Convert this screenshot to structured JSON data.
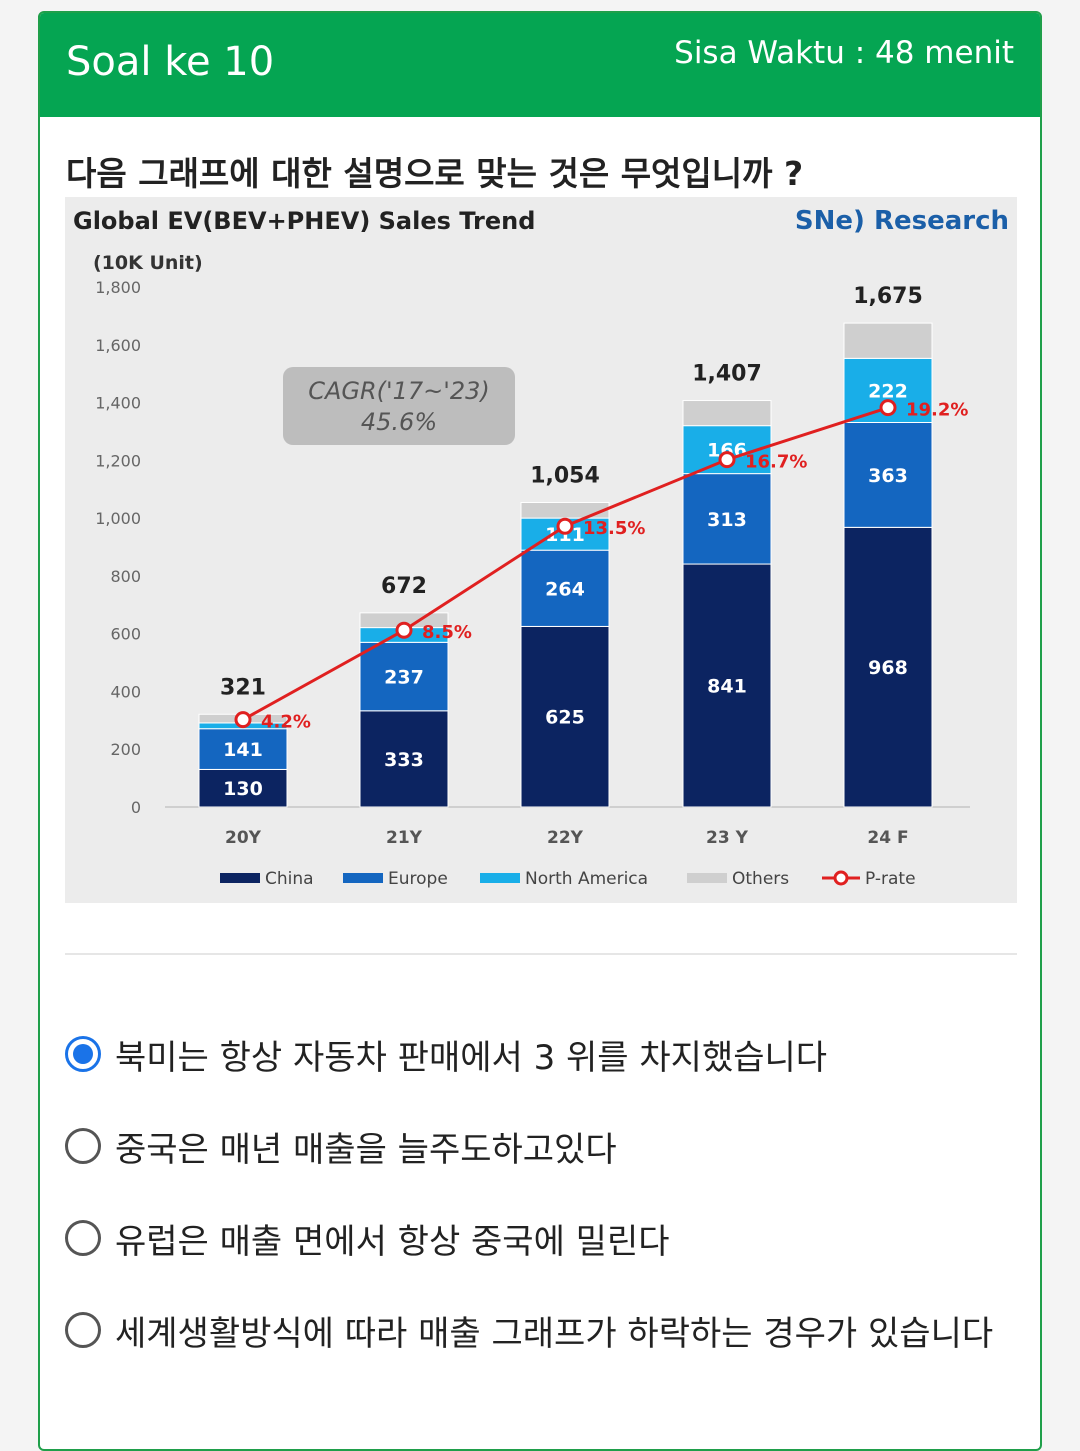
{
  "header": {
    "title": "Soal ke 10",
    "timer": "Sisa Waktu : 48 menit",
    "bg_color": "#05a552"
  },
  "question": "다음 그래프에 대한 설명으로 맞는 것은 무엇입니까 ?",
  "chart_data": {
    "type": "bar",
    "stacked": true,
    "title": "Global EV(BEV+PHEV)  Sales Trend",
    "brand": "SNe) Research",
    "unit_label": "(10K Unit)",
    "categories": [
      "20Y",
      "21Y",
      "22Y",
      "23 Y",
      "24 F"
    ],
    "ylim": [
      0,
      1800
    ],
    "yticks": [
      "1,800",
      "1,600",
      "1,400",
      "1,200",
      "1,000",
      "800",
      "600",
      "400",
      "200",
      "0"
    ],
    "ytick_values": [
      1800,
      1600,
      1400,
      1200,
      1000,
      800,
      600,
      400,
      200,
      0
    ],
    "totals": [
      "321",
      "672",
      "1,054",
      "1,407",
      "1,675"
    ],
    "total_values": [
      321,
      672,
      1054,
      1407,
      1675
    ],
    "series": [
      {
        "name": "China",
        "color": "#0c2461",
        "values": [
          130,
          333,
          625,
          841,
          968
        ],
        "labels": [
          "130",
          "333",
          "625",
          "841",
          "968"
        ]
      },
      {
        "name": "Europe",
        "color": "#1466c0",
        "values": [
          141,
          237,
          264,
          313,
          363
        ],
        "labels": [
          "141",
          "237",
          "264",
          "313",
          "363"
        ]
      },
      {
        "name": "North America",
        "color": "#19aee8",
        "values": [
          20,
          51,
          111,
          166,
          222
        ],
        "labels": [
          "",
          "",
          "111",
          "166",
          "222"
        ]
      },
      {
        "name": "Others",
        "color": "#cfcfcf",
        "values": [
          30,
          51,
          54,
          87,
          122
        ],
        "labels": [
          "",
          "",
          "",
          "",
          ""
        ]
      }
    ],
    "p_rate": {
      "name": "P-rate",
      "color": "#e02020",
      "labels": [
        "4.2%",
        "8.5%",
        "13.5%",
        "16.7%",
        "19.2%"
      ],
      "values_pct": [
        4.2,
        8.5,
        13.5,
        16.7,
        19.2
      ],
      "y2lim": [
        0,
        25
      ]
    },
    "annotation": {
      "line1": "CAGR('17~'23)",
      "line2": "45.6%"
    },
    "legend_position": "bottom"
  },
  "options": [
    {
      "label": "북미는 항상 자동차 판매에서 3 위를 차지했습니다",
      "selected": true
    },
    {
      "label": "중국은 매년 매출을 늘주도하고있다",
      "selected": false
    },
    {
      "label": "유럽은 매출 면에서 항상 중국에 밀린다",
      "selected": false
    },
    {
      "label": "세계생활방식에 따라 매출 그래프가 하락하는 경우가 있습니다",
      "selected": false
    }
  ]
}
